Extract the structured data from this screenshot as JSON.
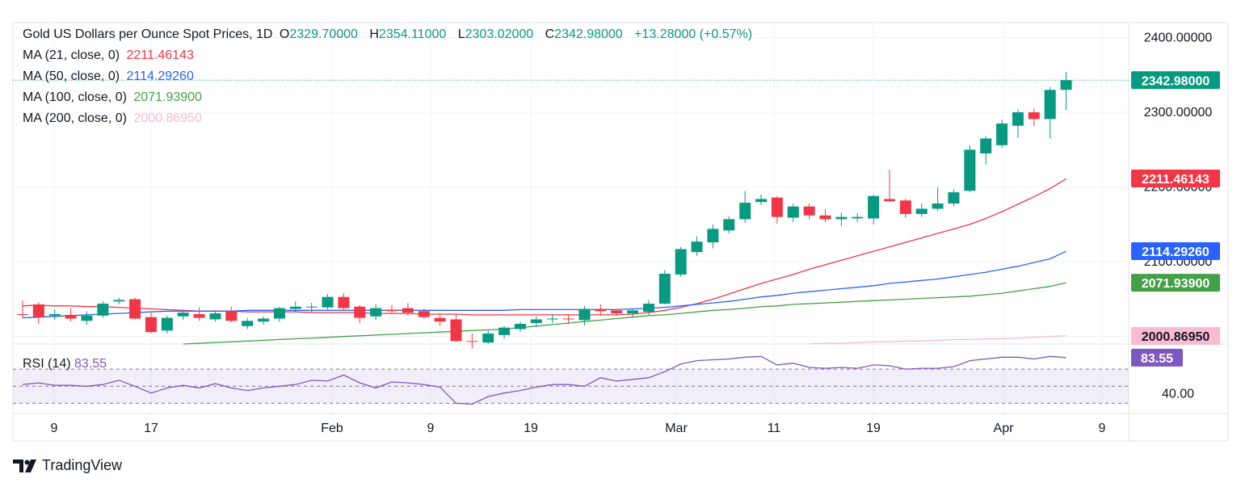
{
  "header": {
    "symbol_title": "Gold US Dollars per Ounce Spot Prices, 1D",
    "ohlc": [
      {
        "label": "O",
        "value": "2329.70000"
      },
      {
        "label": "H",
        "value": "2354.11000"
      },
      {
        "label": "L",
        "value": "2303.02000"
      },
      {
        "label": "C",
        "value": "2342.98000"
      }
    ],
    "change": "+13.28000 (+0.57%)"
  },
  "indicators": [
    {
      "label": "MA (21, close, 0)",
      "value": "2211.46143",
      "color": "#f23645"
    },
    {
      "label": "MA (50, close, 0)",
      "value": "2114.29260",
      "color": "#2962ff"
    },
    {
      "label": "MA (100, close, 0)",
      "value": "2071.93900",
      "color": "#43a047"
    },
    {
      "label": "MA (200, close, 0)",
      "value": "2000.86950",
      "color": "#f8bbd0"
    }
  ],
  "rsi": {
    "label": "RSI (14)",
    "value": "83.55",
    "color": "#7e57c2",
    "axis_label": "40.00",
    "upper": 70,
    "lower": 30
  },
  "footer": {
    "brand": "TradingView"
  },
  "colors": {
    "up": "#089981",
    "down": "#f23645"
  },
  "chart_data": {
    "type": "candlestick",
    "title": "Gold US Dollars per Ounce Spot Prices, 1D",
    "ylim": [
      1990,
      2420
    ],
    "y_ticks": [
      "2400.00000",
      "2300.00000",
      "2200.00000",
      "2100.00000"
    ],
    "x_ticks": [
      "9",
      "17",
      "Feb",
      "9",
      "19",
      "Mar",
      "11",
      "19",
      "Apr",
      "9"
    ],
    "price_label": "2342.98000",
    "candles": [
      {
        "o": 2030,
        "h": 2048,
        "l": 2024,
        "c": 2029
      },
      {
        "o": 2043,
        "h": 2046,
        "l": 2017,
        "c": 2026
      },
      {
        "o": 2028,
        "h": 2036,
        "l": 2022,
        "c": 2030
      },
      {
        "o": 2029,
        "h": 2038,
        "l": 2020,
        "c": 2024
      },
      {
        "o": 2021,
        "h": 2034,
        "l": 2016,
        "c": 2028
      },
      {
        "o": 2028,
        "h": 2047,
        "l": 2025,
        "c": 2044
      },
      {
        "o": 2047,
        "h": 2052,
        "l": 2043,
        "c": 2049
      },
      {
        "o": 2050,
        "h": 2052,
        "l": 2023,
        "c": 2024
      },
      {
        "o": 2026,
        "h": 2032,
        "l": 2004,
        "c": 2006
      },
      {
        "o": 2008,
        "h": 2028,
        "l": 2004,
        "c": 2025
      },
      {
        "o": 2027,
        "h": 2035,
        "l": 2022,
        "c": 2032
      },
      {
        "o": 2030,
        "h": 2039,
        "l": 2021,
        "c": 2025
      },
      {
        "o": 2023,
        "h": 2034,
        "l": 2020,
        "c": 2031
      },
      {
        "o": 2034,
        "h": 2040,
        "l": 2019,
        "c": 2021
      },
      {
        "o": 2014,
        "h": 2025,
        "l": 2010,
        "c": 2021
      },
      {
        "o": 2020,
        "h": 2027,
        "l": 2016,
        "c": 2024
      },
      {
        "o": 2024,
        "h": 2040,
        "l": 2020,
        "c": 2038
      },
      {
        "o": 2037,
        "h": 2047,
        "l": 2033,
        "c": 2040
      },
      {
        "o": 2039,
        "h": 2045,
        "l": 2032,
        "c": 2040
      },
      {
        "o": 2039,
        "h": 2057,
        "l": 2036,
        "c": 2053
      },
      {
        "o": 2053,
        "h": 2058,
        "l": 2036,
        "c": 2038
      },
      {
        "o": 2040,
        "h": 2042,
        "l": 2018,
        "c": 2025
      },
      {
        "o": 2027,
        "h": 2043,
        "l": 2022,
        "c": 2038
      },
      {
        "o": 2036,
        "h": 2042,
        "l": 2031,
        "c": 2034
      },
      {
        "o": 2038,
        "h": 2045,
        "l": 2028,
        "c": 2032
      },
      {
        "o": 2034,
        "h": 2037,
        "l": 2024,
        "c": 2026
      },
      {
        "o": 2025,
        "h": 2031,
        "l": 2014,
        "c": 2020
      },
      {
        "o": 2023,
        "h": 2030,
        "l": 1993,
        "c": 1994
      },
      {
        "o": 1994,
        "h": 2004,
        "l": 1984,
        "c": 1993
      },
      {
        "o": 1992,
        "h": 2008,
        "l": 1990,
        "c": 2004
      },
      {
        "o": 2002,
        "h": 2014,
        "l": 1997,
        "c": 2012
      },
      {
        "o": 2010,
        "h": 2020,
        "l": 2006,
        "c": 2017
      },
      {
        "o": 2018,
        "h": 2027,
        "l": 2013,
        "c": 2023
      },
      {
        "o": 2023,
        "h": 2030,
        "l": 2018,
        "c": 2024
      },
      {
        "o": 2024,
        "h": 2029,
        "l": 2017,
        "c": 2023
      },
      {
        "o": 2022,
        "h": 2041,
        "l": 2015,
        "c": 2037
      },
      {
        "o": 2037,
        "h": 2043,
        "l": 2029,
        "c": 2034
      },
      {
        "o": 2035,
        "h": 2037,
        "l": 2028,
        "c": 2031
      },
      {
        "o": 2031,
        "h": 2036,
        "l": 2025,
        "c": 2035
      },
      {
        "o": 2033,
        "h": 2049,
        "l": 2029,
        "c": 2044
      },
      {
        "o": 2044,
        "h": 2089,
        "l": 2043,
        "c": 2084
      },
      {
        "o": 2083,
        "h": 2120,
        "l": 2080,
        "c": 2117
      },
      {
        "o": 2113,
        "h": 2134,
        "l": 2108,
        "c": 2127
      },
      {
        "o": 2126,
        "h": 2150,
        "l": 2118,
        "c": 2144
      },
      {
        "o": 2142,
        "h": 2161,
        "l": 2138,
        "c": 2157
      },
      {
        "o": 2157,
        "h": 2195,
        "l": 2152,
        "c": 2179
      },
      {
        "o": 2180,
        "h": 2190,
        "l": 2176,
        "c": 2184
      },
      {
        "o": 2186,
        "h": 2188,
        "l": 2151,
        "c": 2160
      },
      {
        "o": 2159,
        "h": 2178,
        "l": 2153,
        "c": 2174
      },
      {
        "o": 2174,
        "h": 2178,
        "l": 2157,
        "c": 2162
      },
      {
        "o": 2162,
        "h": 2170,
        "l": 2153,
        "c": 2157
      },
      {
        "o": 2157,
        "h": 2166,
        "l": 2148,
        "c": 2160
      },
      {
        "o": 2158,
        "h": 2165,
        "l": 2153,
        "c": 2160
      },
      {
        "o": 2158,
        "h": 2190,
        "l": 2150,
        "c": 2188
      },
      {
        "o": 2184,
        "h": 2223,
        "l": 2180,
        "c": 2181
      },
      {
        "o": 2182,
        "h": 2185,
        "l": 2159,
        "c": 2164
      },
      {
        "o": 2164,
        "h": 2178,
        "l": 2160,
        "c": 2171
      },
      {
        "o": 2171,
        "h": 2200,
        "l": 2168,
        "c": 2178
      },
      {
        "o": 2178,
        "h": 2197,
        "l": 2174,
        "c": 2193
      },
      {
        "o": 2195,
        "h": 2256,
        "l": 2193,
        "c": 2250
      },
      {
        "o": 2245,
        "h": 2268,
        "l": 2230,
        "c": 2265
      },
      {
        "o": 2256,
        "h": 2290,
        "l": 2252,
        "c": 2285
      },
      {
        "o": 2282,
        "h": 2304,
        "l": 2266,
        "c": 2300
      },
      {
        "o": 2300,
        "h": 2305,
        "l": 2281,
        "c": 2291
      },
      {
        "o": 2291,
        "h": 2334,
        "l": 2265,
        "c": 2330
      },
      {
        "o": 2330,
        "h": 2354,
        "l": 2303,
        "c": 2343
      }
    ],
    "series": [
      {
        "name": "MA (21, close, 0)",
        "last": 2211.46143,
        "values": [
          2041,
          2042,
          2041,
          2041,
          2040,
          2040,
          2039,
          2038,
          2037,
          2036,
          2035,
          2034,
          2034,
          2034,
          2033,
          2033,
          2033,
          2033,
          2032,
          2032,
          2032,
          2032,
          2031,
          2031,
          2031,
          2030,
          2030,
          2030,
          2029,
          2029,
          2029,
          2029,
          2029,
          2029,
          2029,
          2029,
          2029,
          2029,
          2030,
          2032,
          2035,
          2039,
          2044,
          2050,
          2057,
          2064,
          2071,
          2077,
          2083,
          2090,
          2096,
          2102,
          2108,
          2114,
          2120,
          2126,
          2132,
          2138,
          2144,
          2150,
          2158,
          2167,
          2177,
          2187,
          2198,
          2211
        ]
      },
      {
        "name": "MA (50, close, 0)",
        "last": 2114.2926,
        "values": [
          2025,
          2026,
          2027,
          2028,
          2029,
          2030,
          2031,
          2032,
          2033,
          2034,
          2034,
          2034,
          2034,
          2034,
          2035,
          2035,
          2035,
          2035,
          2035,
          2035,
          2035,
          2035,
          2035,
          2035,
          2035,
          2035,
          2035,
          2035,
          2035,
          2035,
          2035,
          2036,
          2036,
          2036,
          2036,
          2036,
          2036,
          2036,
          2037,
          2038,
          2039,
          2041,
          2043,
          2045,
          2047,
          2050,
          2053,
          2055,
          2058,
          2060,
          2062,
          2064,
          2066,
          2068,
          2071,
          2073,
          2075,
          2077,
          2080,
          2083,
          2086,
          2090,
          2094,
          2099,
          2104,
          2114
        ]
      },
      {
        "name": "MA (100, close, 0)",
        "last": 2071.939,
        "values": [
          null,
          null,
          null,
          null,
          null,
          null,
          null,
          null,
          null,
          null,
          1990,
          1991,
          1992,
          1993,
          1994,
          1995,
          1996,
          1997,
          1998,
          1999,
          2000,
          2001,
          2002,
          2003,
          2004,
          2005,
          2006,
          2007,
          2008,
          2009,
          2010,
          2012,
          2014,
          2016,
          2018,
          2020,
          2022,
          2024,
          2026,
          2028,
          2029,
          2031,
          2033,
          2035,
          2036,
          2038,
          2040,
          2041,
          2043,
          2044,
          2045,
          2046,
          2047,
          2048,
          2049,
          2050,
          2051,
          2052,
          2053,
          2054,
          2056,
          2058,
          2061,
          2064,
          2067,
          2072
        ]
      },
      {
        "name": "MA (200, close, 0)",
        "last": 2000.8695,
        "values": [
          null,
          null,
          null,
          null,
          null,
          null,
          null,
          null,
          null,
          null,
          null,
          null,
          null,
          null,
          null,
          null,
          null,
          null,
          null,
          null,
          null,
          null,
          null,
          null,
          null,
          null,
          null,
          null,
          null,
          null,
          null,
          null,
          null,
          null,
          null,
          null,
          null,
          null,
          null,
          null,
          null,
          null,
          null,
          null,
          null,
          null,
          null,
          null,
          null,
          1990,
          1991,
          1991,
          1992,
          1993,
          1993,
          1994,
          1994,
          1995,
          1996,
          1996,
          1997,
          1997,
          1998,
          1999,
          2000,
          2001
        ]
      },
      {
        "name": "RSI (14)",
        "last": 83.55,
        "values": [
          52,
          54,
          51,
          51,
          50,
          52,
          57,
          50,
          42,
          48,
          51,
          48,
          53,
          48,
          45,
          48,
          50,
          52,
          57,
          56,
          63,
          54,
          48,
          55,
          54,
          52,
          49,
          30,
          29,
          38,
          42,
          45,
          49,
          52,
          52,
          50,
          60,
          56,
          58,
          60,
          67,
          76,
          80,
          81,
          82,
          84,
          85,
          75,
          77,
          72,
          71,
          72,
          71,
          75,
          74,
          70,
          71,
          71,
          73,
          80,
          82,
          84,
          84,
          82,
          85,
          83.55
        ]
      }
    ]
  }
}
